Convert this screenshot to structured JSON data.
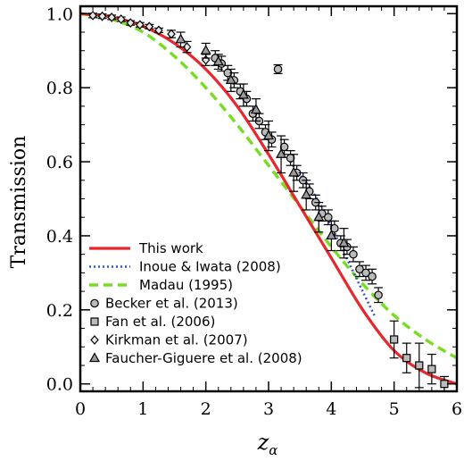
{
  "chart_data": {
    "type": "line",
    "xlabel_var": "z",
    "xlabel_sub": "α",
    "ylabel": "Transmission",
    "xlim": [
      0,
      6
    ],
    "ylim": [
      -0.02,
      1.02
    ],
    "xticks": [
      "0",
      "1",
      "2",
      "3",
      "4",
      "5",
      "6"
    ],
    "yticks": [
      "0.0",
      "0.2",
      "0.4",
      "0.6",
      "0.8",
      "1.0"
    ],
    "grid": false,
    "legend_position": "lower-left",
    "series": [
      {
        "name": "This work",
        "kind": "line",
        "style": "solid",
        "color": "#e8262b",
        "x": [
          0.0,
          0.5,
          1.0,
          1.5,
          2.0,
          2.5,
          3.0,
          3.5,
          4.0,
          4.5,
          5.0,
          5.5,
          6.0
        ],
        "y": [
          1.0,
          0.991,
          0.966,
          0.92,
          0.85,
          0.75,
          0.62,
          0.48,
          0.34,
          0.2,
          0.09,
          0.03,
          0.0
        ]
      },
      {
        "name": "Inoue & Iwata (2008)",
        "kind": "line",
        "style": "dotted",
        "color": "#3355cc",
        "x": [
          3.3,
          3.5,
          3.7,
          3.9,
          4.1,
          4.3,
          4.5,
          4.7
        ],
        "y": [
          0.61,
          0.565,
          0.52,
          0.46,
          0.39,
          0.32,
          0.25,
          0.18
        ]
      },
      {
        "name": "Madau (1995)",
        "kind": "line",
        "style": "dashed",
        "color": "#77dd22",
        "x": [
          0.0,
          0.5,
          1.0,
          1.5,
          2.0,
          2.5,
          3.0,
          3.5,
          4.0,
          4.5,
          5.0,
          5.5,
          6.0
        ],
        "y": [
          1.0,
          0.985,
          0.95,
          0.885,
          0.8,
          0.7,
          0.59,
          0.48,
          0.37,
          0.27,
          0.185,
          0.12,
          0.07
        ]
      },
      {
        "name": "Becker et al. (2013)",
        "kind": "points",
        "marker": "circle",
        "x": [
          2.15,
          2.25,
          2.35,
          2.45,
          2.55,
          2.65,
          2.75,
          2.85,
          2.95,
          3.05,
          3.15,
          3.25,
          3.35,
          3.45,
          3.55,
          3.65,
          3.75,
          3.85,
          3.95,
          4.05,
          4.15,
          4.25,
          4.35,
          4.45,
          4.55,
          4.65,
          4.75
        ],
        "y": [
          0.88,
          0.865,
          0.84,
          0.82,
          0.79,
          0.77,
          0.73,
          0.71,
          0.68,
          0.66,
          0.85,
          0.64,
          0.61,
          0.57,
          0.55,
          0.52,
          0.49,
          0.46,
          0.45,
          0.42,
          0.38,
          0.37,
          0.35,
          0.31,
          0.3,
          0.29,
          0.24
        ],
        "err": [
          0.02,
          0.02,
          0.02,
          0.02,
          0.02,
          0.02,
          0.02,
          0.02,
          0.02,
          0.02,
          0.012,
          0.02,
          0.02,
          0.02,
          0.02,
          0.02,
          0.02,
          0.02,
          0.02,
          0.02,
          0.02,
          0.02,
          0.02,
          0.02,
          0.02,
          0.02,
          0.02
        ]
      },
      {
        "name": "Fan et al. (2006)",
        "kind": "points",
        "marker": "square",
        "x": [
          5.0,
          5.2,
          5.4,
          5.6,
          5.8
        ],
        "y": [
          0.12,
          0.07,
          0.05,
          0.04,
          0.0
        ],
        "err": [
          0.05,
          0.04,
          0.06,
          0.04,
          0.02
        ]
      },
      {
        "name": "Kirkman et al. (2007)",
        "kind": "points",
        "marker": "diamond",
        "x": [
          0.2,
          0.35,
          0.5,
          0.65,
          0.8,
          0.95,
          1.1,
          1.25,
          1.45,
          1.7,
          2.0
        ],
        "y": [
          0.995,
          0.993,
          0.99,
          0.985,
          0.975,
          0.97,
          0.965,
          0.955,
          0.945,
          0.91,
          0.875
        ],
        "err": [
          0.006,
          0.006,
          0.006,
          0.006,
          0.006,
          0.006,
          0.006,
          0.006,
          0.01,
          0.015,
          0.015
        ]
      },
      {
        "name": "Faucher-Giguere et al. (2008)",
        "kind": "points",
        "marker": "triangle",
        "x": [
          1.6,
          2.0,
          2.2,
          2.4,
          2.6,
          2.8,
          3.0,
          3.2,
          3.4,
          3.6,
          3.8,
          4.0,
          4.2
        ],
        "y": [
          0.93,
          0.9,
          0.87,
          0.82,
          0.78,
          0.74,
          0.67,
          0.62,
          0.57,
          0.51,
          0.45,
          0.4,
          0.38
        ],
        "err": [
          0.02,
          0.02,
          0.02,
          0.03,
          0.03,
          0.03,
          0.04,
          0.05,
          0.05,
          0.04,
          0.04,
          0.04,
          0.04
        ]
      }
    ]
  }
}
